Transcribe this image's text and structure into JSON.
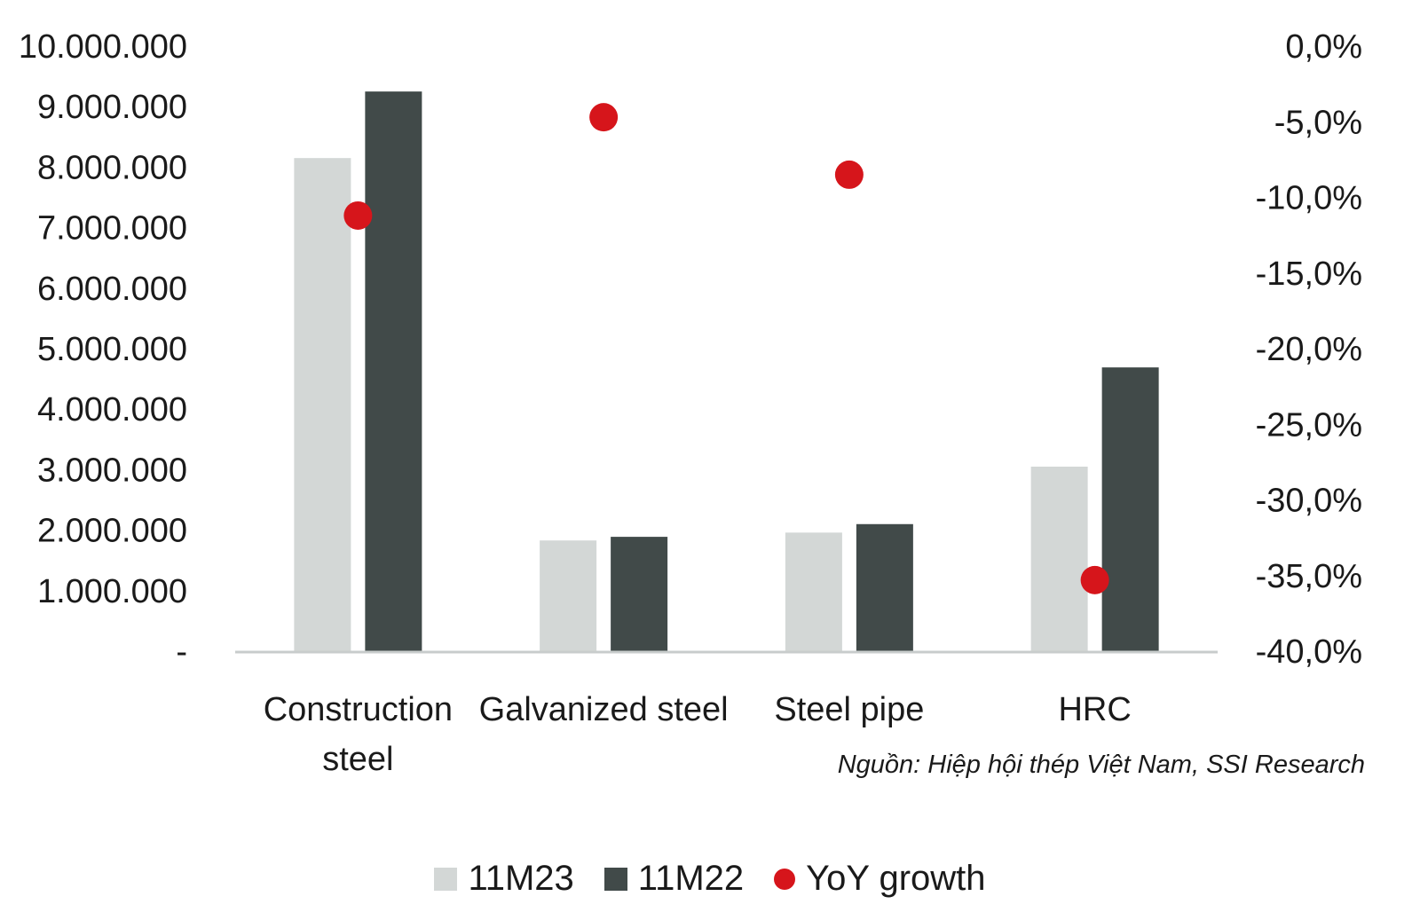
{
  "chart_data": {
    "type": "bar",
    "title": "",
    "categories": [
      [
        "Construction",
        "steel"
      ],
      [
        "Galvanized steel"
      ],
      [
        "Steel pipe"
      ],
      [
        "HRC"
      ]
    ],
    "series": [
      {
        "name": "11M23",
        "kind": "bar",
        "axis": "left",
        "color": "#d3d7d6",
        "values": [
          8150000,
          1830000,
          1960000,
          3050000
        ]
      },
      {
        "name": "11M22",
        "kind": "bar",
        "axis": "left",
        "color": "#414a49",
        "values": [
          9250000,
          1890000,
          2100000,
          4690000
        ]
      },
      {
        "name": "YoY growth",
        "kind": "scatter",
        "axis": "right",
        "color": "#d6151b",
        "values": [
          -11.2,
          -4.7,
          -8.5,
          -35.3
        ]
      }
    ],
    "y_left": {
      "min": 0,
      "max": 10000000,
      "tick_labels": [
        "-",
        "1.000.000",
        "2.000.000",
        "3.000.000",
        "4.000.000",
        "5.000.000",
        "6.000.000",
        "7.000.000",
        "8.000.000",
        "9.000.000",
        "10.000.000"
      ]
    },
    "y_right": {
      "min": -40,
      "max": 0,
      "tick_labels": [
        "-40,0%",
        "-35,0%",
        "-30,0%",
        "-25,0%",
        "-20,0%",
        "-15,0%",
        "-10,0%",
        "-5,0%",
        "0,0%"
      ]
    },
    "grid": false,
    "legend_position": "bottom",
    "source": "Nguồn: Hiệp hội thép Việt Nam, SSI Research"
  },
  "colors": {
    "bar_11M23": "#d3d7d6",
    "bar_11M22": "#414a49",
    "yoy_dot": "#d6151b",
    "axis_line": "#c8cccc"
  }
}
